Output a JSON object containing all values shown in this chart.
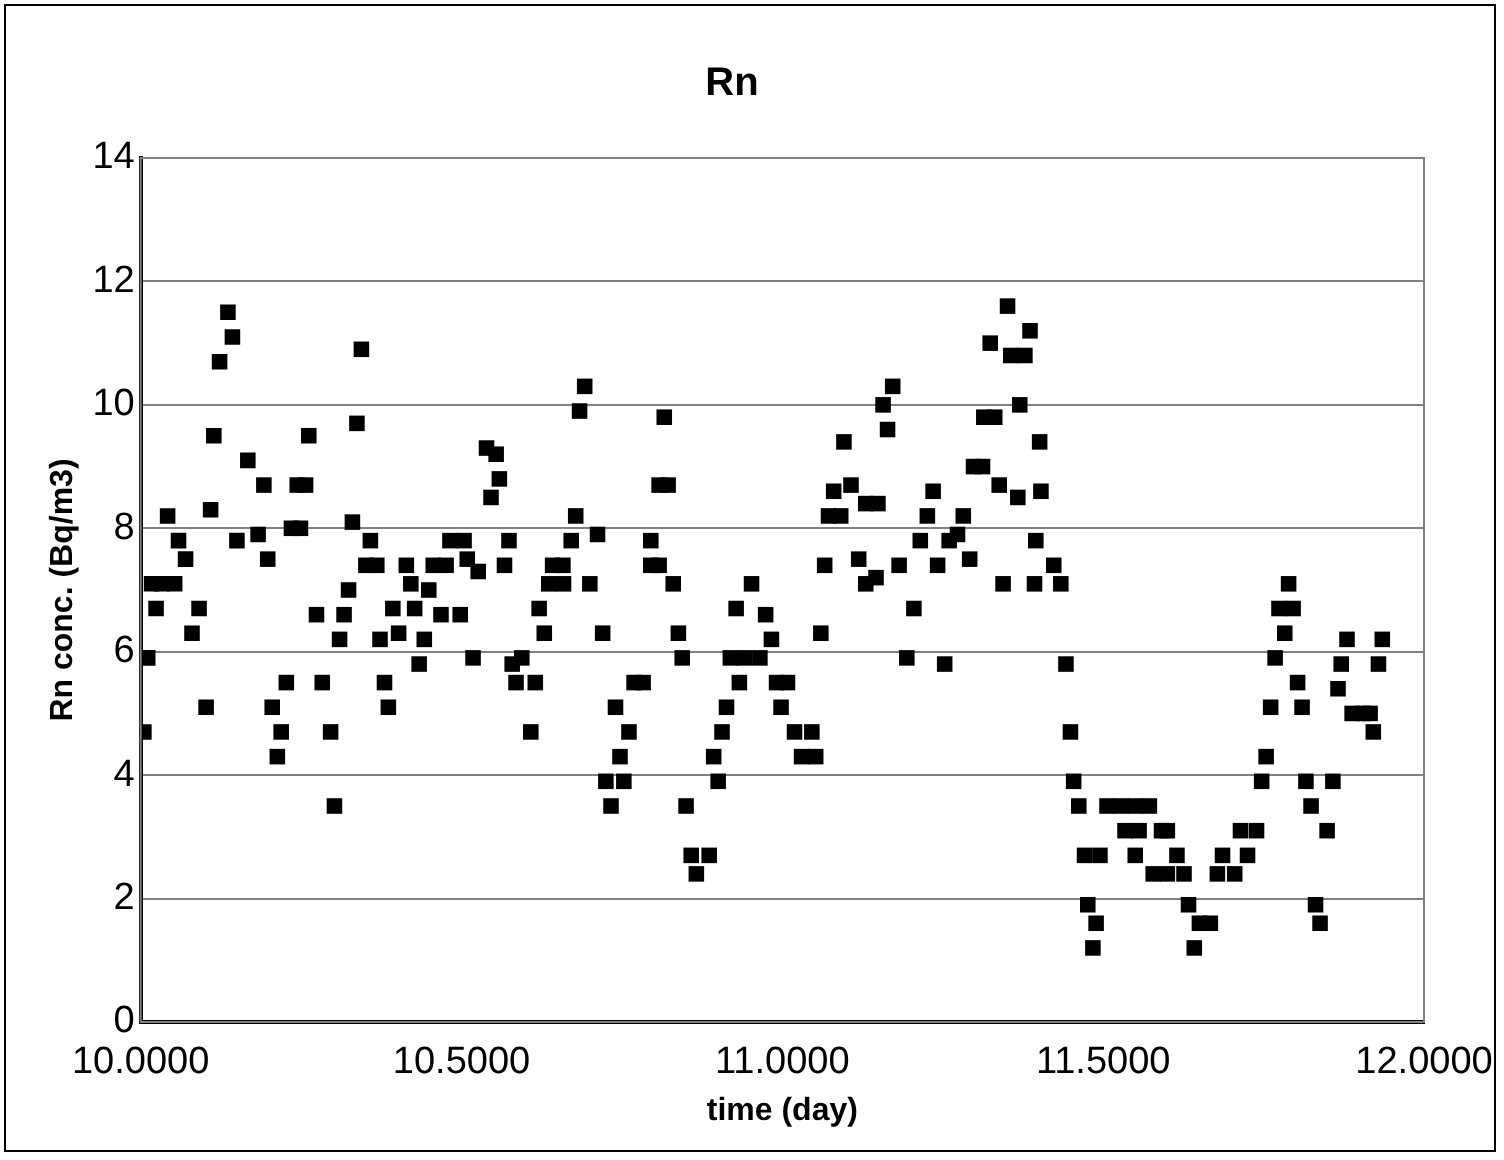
{
  "chart_data": {
    "type": "scatter",
    "title": "Rn",
    "xlabel": "time (day)",
    "ylabel": "Rn conc. (Bq/m3)",
    "xlim": [
      10,
      12
    ],
    "xticks": [
      {
        "value": 10,
        "label": "10.0000"
      },
      {
        "value": 10.5,
        "label": "10.5000"
      },
      {
        "value": 11,
        "label": "11.0000"
      },
      {
        "value": 11.5,
        "label": "11.5000"
      },
      {
        "value": 12,
        "label": "12.0000"
      }
    ],
    "ylim": [
      0,
      14
    ],
    "yticks": [
      0,
      2,
      4,
      6,
      8,
      10,
      12,
      14
    ],
    "grid": "y",
    "legend": false,
    "marker": "square",
    "series": [
      {
        "color": "#000000",
        "x": [
          10.005,
          10.011,
          10.017,
          10.024,
          10.033,
          10.042,
          10.053,
          10.059,
          10.07,
          10.08,
          10.091,
          10.102,
          10.109,
          10.114,
          10.123,
          10.136,
          10.143,
          10.15,
          10.167,
          10.183,
          10.192,
          10.198,
          10.205,
          10.213,
          10.219,
          10.227,
          10.235,
          10.244,
          10.257,
          10.249,
          10.262,
          10.274,
          10.283,
          10.296,
          10.302,
          10.31,
          10.317,
          10.324,
          10.33,
          10.337,
          10.344,
          10.351,
          10.358,
          10.368,
          10.373,
          10.38,
          10.386,
          10.393,
          10.402,
          10.414,
          10.421,
          10.427,
          10.434,
          10.442,
          10.449,
          10.456,
          10.468,
          10.476,
          10.482,
          10.498,
          10.504,
          10.509,
          10.518,
          10.526,
          10.539,
          10.554,
          10.559,
          10.546,
          10.574,
          10.567,
          10.579,
          10.585,
          10.594,
          10.608,
          10.615,
          10.621,
          10.629,
          10.636,
          10.642,
          10.658,
          10.659,
          10.671,
          10.678,
          10.684,
          10.692,
          10.7,
          10.712,
          10.72,
          10.733,
          10.725,
          10.753,
          10.747,
          10.761,
          10.74,
          10.769,
          10.783,
          10.795,
          10.808,
          10.795,
          10.808,
          10.822,
          10.816,
          10.83,
          10.838,
          10.844,
          10.85,
          10.858,
          10.866,
          10.886,
          10.9,
          10.893,
          10.906,
          10.913,
          10.933,
          10.919,
          10.941,
          10.928,
          10.952,
          10.965,
          10.974,
          10.983,
          10.991,
          11.008,
          10.998,
          11.019,
          11.046,
          11.03,
          11.052,
          11.06,
          11.066,
          11.072,
          11.091,
          11.08,
          11.107,
          11.096,
          11.119,
          11.13,
          11.146,
          11.13,
          11.149,
          11.157,
          11.172,
          11.164,
          11.182,
          11.194,
          11.205,
          11.215,
          11.226,
          11.235,
          11.242,
          11.253,
          11.26,
          11.273,
          11.282,
          11.292,
          11.298,
          11.312,
          11.314,
          11.331,
          11.324,
          11.338,
          11.344,
          11.351,
          11.356,
          11.367,
          11.37,
          11.378,
          11.386,
          11.393,
          11.395,
          11.401,
          11.403,
          11.423,
          11.434,
          11.442,
          11.449,
          11.454,
          11.462,
          11.471,
          11.495,
          11.476,
          11.489,
          11.484,
          11.506,
          11.528,
          11.55,
          11.572,
          11.534,
          11.556,
          11.55,
          11.591,
          11.6,
          11.615,
          11.578,
          11.6,
          11.626,
          11.633,
          11.65,
          11.667,
          11.642,
          11.686,
          11.678,
          11.705,
          11.714,
          11.739,
          11.725,
          11.747,
          11.754,
          11.761,
          11.768,
          11.783,
          11.774,
          11.796,
          11.789,
          11.803,
          11.81,
          11.816,
          11.824,
          11.831,
          11.838,
          11.849,
          11.858,
          11.866,
          11.871,
          11.88,
          11.888,
          11.905,
          11.916,
          11.921,
          11.929,
          11.935
        ],
        "values": [
          4.7,
          5.9,
          7.1,
          6.7,
          7.1,
          8.2,
          7.1,
          7.8,
          7.5,
          6.3,
          6.7,
          5.1,
          8.3,
          9.5,
          10.7,
          11.5,
          11.1,
          7.8,
          9.1,
          7.9,
          8.7,
          7.5,
          5.1,
          4.3,
          4.7,
          5.5,
          8.0,
          8.7,
          8.7,
          8.0,
          9.5,
          6.6,
          5.5,
          4.7,
          3.5,
          6.2,
          6.6,
          7.0,
          8.1,
          9.7,
          10.9,
          7.4,
          7.8,
          7.4,
          6.2,
          5.5,
          5.1,
          6.7,
          6.3,
          7.4,
          7.1,
          6.7,
          5.8,
          6.2,
          7.0,
          7.4,
          6.6,
          7.4,
          7.8,
          6.6,
          7.8,
          7.5,
          5.9,
          7.3,
          9.3,
          9.2,
          8.8,
          8.5,
          7.8,
          7.4,
          5.8,
          5.5,
          5.9,
          4.7,
          5.5,
          6.7,
          6.3,
          7.1,
          7.4,
          7.4,
          7.1,
          7.8,
          8.2,
          9.9,
          10.3,
          7.1,
          7.9,
          6.3,
          3.5,
          3.9,
          3.9,
          4.3,
          4.7,
          5.1,
          5.5,
          5.5,
          7.4,
          7.4,
          7.8,
          8.7,
          8.7,
          9.8,
          7.1,
          6.3,
          5.9,
          3.5,
          2.7,
          2.4,
          2.7,
          3.9,
          4.3,
          4.7,
          5.1,
          5.5,
          5.9,
          5.9,
          6.7,
          7.1,
          5.9,
          6.6,
          6.2,
          5.5,
          5.5,
          5.1,
          4.7,
          4.7,
          4.3,
          4.3,
          6.3,
          7.4,
          8.2,
          8.2,
          8.6,
          8.7,
          9.4,
          7.5,
          7.1,
          7.2,
          8.4,
          8.4,
          10.0,
          10.3,
          9.6,
          7.4,
          5.9,
          6.7,
          7.8,
          8.2,
          8.6,
          7.4,
          5.8,
          7.8,
          7.9,
          8.2,
          7.5,
          9.0,
          9.0,
          9.8,
          9.8,
          11.0,
          8.7,
          7.1,
          11.6,
          10.8,
          8.5,
          10.0,
          10.8,
          11.2,
          7.1,
          7.8,
          9.4,
          8.6,
          7.4,
          7.1,
          5.8,
          4.7,
          3.9,
          3.5,
          2.7,
          2.7,
          1.9,
          1.6,
          1.2,
          3.5,
          3.5,
          3.5,
          3.5,
          3.1,
          3.1,
          2.7,
          3.1,
          3.1,
          2.7,
          2.4,
          2.4,
          2.4,
          1.9,
          1.6,
          1.6,
          1.2,
          2.7,
          2.4,
          2.4,
          3.1,
          3.1,
          2.7,
          3.9,
          4.3,
          5.1,
          5.9,
          6.3,
          6.7,
          6.7,
          7.1,
          5.5,
          5.1,
          3.9,
          3.5,
          1.9,
          1.6,
          3.1,
          3.9,
          5.4,
          5.8,
          6.2,
          5.0,
          5.0,
          5.0,
          4.7,
          5.8,
          6.2
        ]
      }
    ]
  }
}
